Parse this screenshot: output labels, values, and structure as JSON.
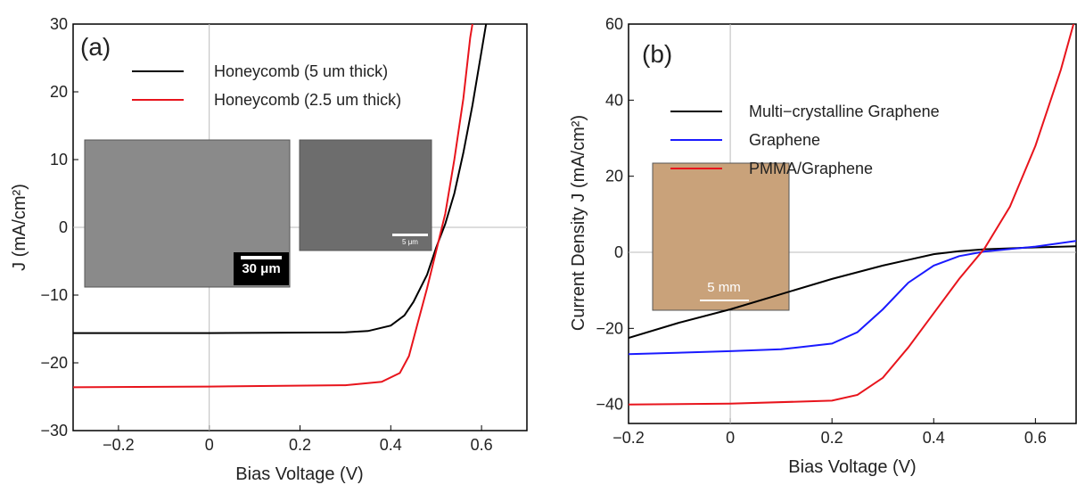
{
  "chart_data": [
    {
      "type": "line",
      "panel_label": "(a)",
      "x_label": "Bias Voltage (V)",
      "y_label": "J (mA/cm²)",
      "xlim": [
        -0.3,
        0.7
      ],
      "ylim": [
        -30,
        30
      ],
      "xticks": [
        {
          "value": -0.2,
          "label": "−0.2"
        },
        0,
        0.2,
        0.4,
        0.6
      ],
      "yticks": [
        {
          "value": -30,
          "label": "−30"
        },
        {
          "value": -20,
          "label": "−20"
        },
        {
          "value": -10,
          "label": "−10"
        },
        0,
        10,
        20,
        30
      ],
      "legend": "upper left",
      "inset_labels": [
        "30 μm",
        "5 μm"
      ],
      "series": [
        {
          "name": "Honeycomb (5 um thick)",
          "color": "#000000",
          "x": [
            -0.3,
            0,
            0.3,
            0.35,
            0.4,
            0.43,
            0.45,
            0.48,
            0.5,
            0.52,
            0.54,
            0.56,
            0.58,
            0.6,
            0.61
          ],
          "values": [
            -15.6,
            -15.6,
            -15.5,
            -15.3,
            -14.5,
            -13,
            -11,
            -7,
            -3,
            0.5,
            5,
            11,
            18,
            26,
            30
          ]
        },
        {
          "name": "Honeycomb (2.5 um thick)",
          "color": "#e8141c",
          "x": [
            -0.3,
            0,
            0.3,
            0.38,
            0.42,
            0.44,
            0.46,
            0.48,
            0.5,
            0.52,
            0.54,
            0.56,
            0.575,
            0.58
          ],
          "values": [
            -23.6,
            -23.5,
            -23.3,
            -22.8,
            -21.5,
            -19,
            -14,
            -9,
            -3.5,
            2,
            10,
            19,
            28,
            30
          ]
        }
      ]
    },
    {
      "type": "line",
      "panel_label": "(b)",
      "x_label": "Bias Voltage (V)",
      "y_label": "Current Density J (mA/cm²)",
      "xlim": [
        -0.2,
        0.68
      ],
      "ylim": [
        -45,
        60
      ],
      "xticks": [
        {
          "value": -0.2,
          "label": "−0.2"
        },
        0,
        0.2,
        0.4,
        0.6
      ],
      "yticks": [
        {
          "value": -40,
          "label": "−40"
        },
        {
          "value": -20,
          "label": "−20"
        },
        0,
        20,
        40,
        60
      ],
      "legend": "upper left",
      "inset_labels": [
        "5 mm"
      ],
      "series": [
        {
          "name": "Multi−crystalline Graphene",
          "color": "#000000",
          "x": [
            -0.2,
            -0.1,
            0,
            0.1,
            0.2,
            0.3,
            0.4,
            0.45,
            0.5,
            0.6,
            0.68
          ],
          "values": [
            -22.5,
            -18.5,
            -15,
            -11,
            -7,
            -3.5,
            -0.5,
            0.3,
            0.8,
            1.3,
            1.6
          ]
        },
        {
          "name": "Graphene",
          "color": "#1a1aff",
          "x": [
            -0.2,
            0,
            0.1,
            0.2,
            0.25,
            0.3,
            0.35,
            0.4,
            0.45,
            0.5,
            0.6,
            0.68
          ],
          "values": [
            -26.8,
            -26,
            -25.5,
            -24,
            -21,
            -15,
            -8,
            -3.5,
            -1,
            0.2,
            1.5,
            3
          ]
        },
        {
          "name": "PMMA/Graphene",
          "color": "#e8141c",
          "x": [
            -0.2,
            0,
            0.2,
            0.25,
            0.3,
            0.35,
            0.4,
            0.45,
            0.5,
            0.55,
            0.6,
            0.65,
            0.675
          ],
          "values": [
            -40,
            -39.8,
            -39,
            -37.5,
            -33,
            -25,
            -16,
            -7,
            1,
            12,
            28,
            48,
            60
          ]
        }
      ]
    }
  ]
}
